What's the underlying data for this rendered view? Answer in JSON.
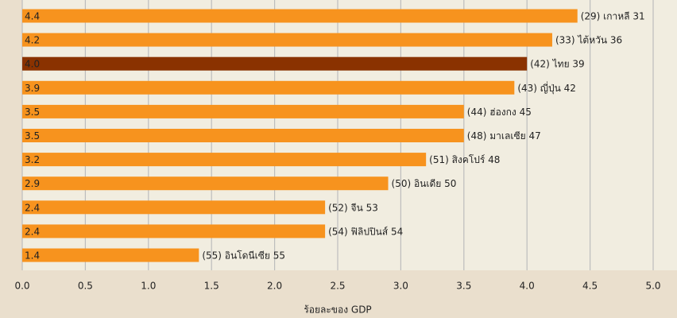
{
  "chart_data": {
    "type": "bar",
    "orientation": "horizontal",
    "categories": [
      "(29) เกาหลี 31",
      "(33) ไต้หวัน 36",
      "(42) ไทย 39",
      "(43) ญี่ปุ่น 42",
      "(44) ฮ่องกง 45",
      "(48) มาเลเซีย 47",
      "(51) สิงคโปร์ 48",
      "(50) อินเดีย 50",
      "(52) จีน 53",
      "(54) ฟิลิปปินส์ 54",
      "(55) อินโดนีเซีย 55"
    ],
    "values": [
      4.4,
      4.2,
      4.0,
      3.9,
      3.5,
      3.5,
      3.2,
      2.9,
      2.4,
      2.4,
      1.4
    ],
    "value_labels": [
      "4.4",
      "4.2",
      "4.0",
      "3.9",
      "3.5",
      "3.5",
      "3.2",
      "2.9",
      "2.4",
      "2.4",
      "1.4"
    ],
    "colors": [
      "#f7931e",
      "#f7931e",
      "#8a3200",
      "#f7931e",
      "#f7931e",
      "#f7931e",
      "#f7931e",
      "#f7931e",
      "#f7931e",
      "#f7931e",
      "#f7931e"
    ],
    "xlabel": "ร้อยละของ GDP",
    "xlim": [
      0,
      5
    ],
    "xticks": [
      {
        "value": 0,
        "label": "0.0"
      },
      {
        "value": 0.5,
        "label": "0.5"
      },
      {
        "value": 1,
        "label": "1.0"
      },
      {
        "value": 1.5,
        "label": "1.5"
      },
      {
        "value": 2,
        "label": "2.0"
      },
      {
        "value": 2.5,
        "label": "2.5"
      },
      {
        "value": 3,
        "label": "3.0"
      },
      {
        "value": 3.5,
        "label": "3.5"
      },
      {
        "value": 4,
        "label": "4.0"
      },
      {
        "value": 4.5,
        "label": "4.5"
      },
      {
        "value": 5,
        "label": "5.0"
      }
    ],
    "grid": true
  }
}
